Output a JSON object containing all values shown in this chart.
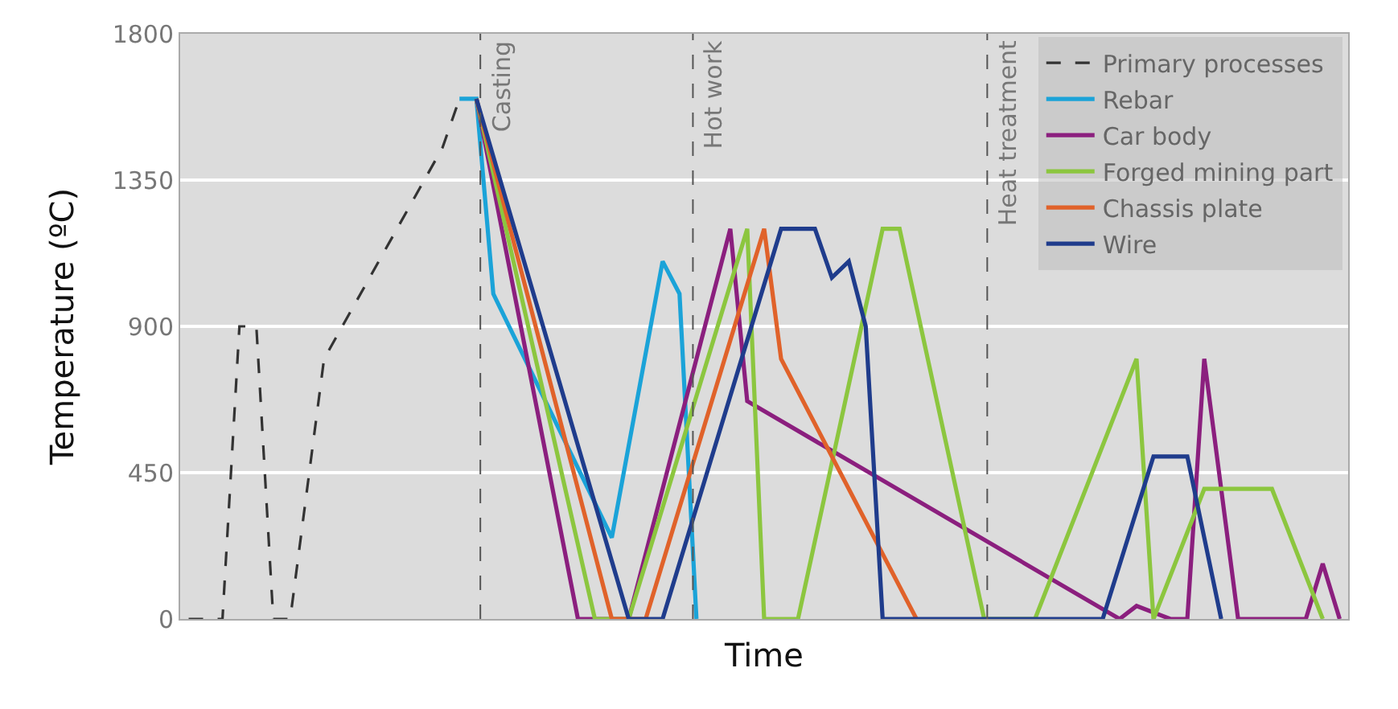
{
  "chart_data": {
    "type": "line",
    "xlabel": "Time",
    "ylabel": "Temperature (ºC)",
    "categories": [
      null,
      null,
      null,
      null,
      null,
      null,
      null,
      null,
      null,
      null,
      null,
      null,
      null,
      null,
      null,
      null,
      null,
      null,
      null,
      null,
      null,
      null,
      null,
      null,
      null,
      null,
      null,
      null,
      null,
      null,
      null,
      null,
      null,
      null,
      null,
      null,
      null,
      null,
      null,
      null,
      null,
      null,
      null,
      null,
      null,
      null,
      null,
      null,
      null,
      null,
      null,
      null,
      null,
      null,
      null,
      null,
      null,
      null,
      null,
      null,
      null,
      null,
      null,
      null,
      null,
      null,
      null,
      null,
      null
    ],
    "ylim": [
      0,
      1800
    ],
    "yticks": [
      0,
      450,
      900,
      1350,
      1800
    ],
    "grid": "y",
    "legend": "top right",
    "tick_labels": "y",
    "marker": "none",
    "annotations": [
      "Casting",
      "Hot work",
      "Heat treatment"
    ],
    "series": [
      {
        "name": "Primary processes",
        "color": "#333333",
        "line_style": "dashed",
        "values": [
          0,
          null,
          0,
          900,
          900,
          0,
          0,
          null,
          800,
          null,
          null,
          null,
          null,
          null,
          null,
          1450,
          1600,
          1600,
          null,
          null,
          null,
          null,
          null,
          null,
          null,
          null,
          null,
          null,
          null,
          null,
          null,
          null,
          null,
          null,
          null,
          null,
          null,
          null,
          null,
          null,
          null,
          null,
          null,
          null,
          null,
          null,
          null,
          null,
          null,
          null,
          null,
          null,
          null,
          null,
          null,
          null,
          null,
          null,
          null,
          null,
          null,
          null,
          null,
          null,
          null,
          null,
          null,
          null,
          null
        ]
      },
      {
        "name": "Rebar",
        "color": "#1ba3d8",
        "line_style": "solid",
        "values": [
          null,
          null,
          null,
          null,
          null,
          null,
          null,
          null,
          null,
          null,
          null,
          null,
          null,
          null,
          null,
          null,
          1600,
          1600,
          1000,
          null,
          null,
          null,
          null,
          null,
          null,
          250,
          null,
          null,
          1100,
          1000,
          0,
          null,
          null,
          null,
          null,
          null,
          null,
          null,
          null,
          null,
          null,
          null,
          null,
          null,
          null,
          null,
          null,
          null,
          null,
          null,
          null,
          null,
          null,
          null,
          null,
          null,
          null,
          null,
          null,
          null,
          null,
          null,
          null,
          null,
          null,
          null,
          null,
          null,
          null
        ]
      },
      {
        "name": "Car body",
        "color": "#8b1f7e",
        "line_style": "solid",
        "values": [
          null,
          null,
          null,
          null,
          null,
          null,
          null,
          null,
          null,
          null,
          null,
          null,
          null,
          null,
          null,
          null,
          null,
          1600,
          null,
          null,
          null,
          null,
          null,
          0,
          null,
          null,
          0,
          null,
          null,
          null,
          null,
          null,
          1200,
          670,
          null,
          null,
          null,
          null,
          null,
          null,
          null,
          null,
          null,
          null,
          null,
          null,
          null,
          null,
          null,
          null,
          null,
          null,
          null,
          null,
          null,
          0,
          40,
          null,
          0,
          0,
          800,
          null,
          0,
          null,
          null,
          null,
          0,
          170,
          0
        ]
      },
      {
        "name": "Forged mining part",
        "color": "#8cc63f",
        "line_style": "solid",
        "values": [
          null,
          null,
          null,
          null,
          null,
          null,
          null,
          null,
          null,
          null,
          null,
          null,
          null,
          null,
          null,
          null,
          null,
          1600,
          null,
          null,
          null,
          null,
          null,
          null,
          0,
          null,
          0,
          null,
          null,
          null,
          null,
          null,
          null,
          1200,
          0,
          null,
          0,
          null,
          null,
          null,
          null,
          1200,
          1200,
          null,
          null,
          null,
          null,
          0,
          null,
          null,
          0,
          null,
          null,
          null,
          null,
          null,
          800,
          0,
          null,
          null,
          400,
          null,
          null,
          null,
          400,
          null,
          null,
          0,
          null
        ]
      },
      {
        "name": "Chassis plate",
        "color": "#e0622a",
        "line_style": "solid",
        "values": [
          null,
          null,
          null,
          null,
          null,
          null,
          null,
          null,
          null,
          null,
          null,
          null,
          null,
          null,
          null,
          null,
          null,
          1600,
          null,
          null,
          null,
          null,
          null,
          null,
          null,
          0,
          null,
          0,
          null,
          null,
          null,
          null,
          null,
          null,
          1200,
          800,
          null,
          null,
          null,
          null,
          null,
          null,
          null,
          0,
          null,
          null,
          null,
          null,
          null,
          null,
          null,
          null,
          null,
          null,
          null,
          null,
          null,
          null,
          null,
          null,
          null,
          null,
          null,
          null,
          null,
          null,
          null,
          null,
          null
        ]
      },
      {
        "name": "Wire",
        "color": "#1f3c8c",
        "line_style": "solid",
        "values": [
          null,
          null,
          null,
          null,
          null,
          null,
          null,
          null,
          null,
          null,
          null,
          null,
          null,
          null,
          null,
          null,
          null,
          1600,
          null,
          null,
          null,
          null,
          null,
          null,
          null,
          null,
          0,
          null,
          0,
          null,
          null,
          null,
          null,
          null,
          null,
          1200,
          null,
          1200,
          1050,
          1100,
          900,
          0,
          null,
          null,
          null,
          null,
          null,
          null,
          null,
          null,
          null,
          null,
          null,
          null,
          0,
          null,
          null,
          500,
          null,
          500,
          null,
          0,
          null,
          null,
          null,
          null,
          null,
          null,
          null
        ]
      }
    ]
  }
}
